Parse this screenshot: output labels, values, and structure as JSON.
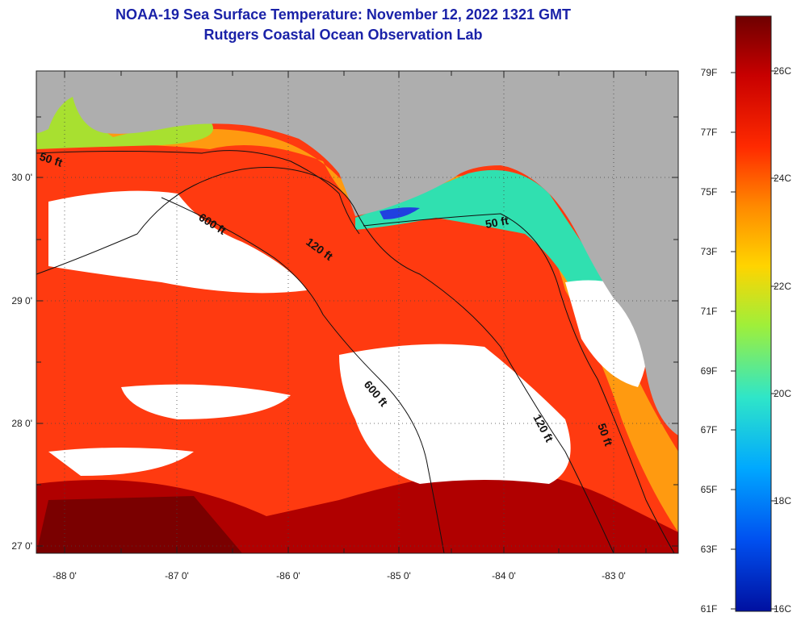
{
  "title": "NOAA-19 Sea Surface Temperature:  November 12, 2022 1321 GMT",
  "subtitle": "Rutgers Coastal Ocean Observation Lab",
  "lat_ticks": [
    "30 0'",
    "29 0'",
    "28 0'",
    "27 0'"
  ],
  "lon_ticks": [
    "-88 0'",
    "-87 0'",
    "-86 0'",
    "-85 0'",
    "-84 0'",
    "-83 0'"
  ],
  "contour_labels": [
    "50 ft",
    "600 ft",
    "120 ft",
    "50 ft",
    "600 ft",
    "120 ft",
    "50 ft"
  ],
  "colorbar": {
    "fahrenheit": [
      "79F",
      "77F",
      "75F",
      "73F",
      "71F",
      "69F",
      "67F",
      "65F",
      "63F",
      "61F"
    ],
    "celsius": [
      "26C",
      "24C",
      "22C",
      "20C",
      "18C",
      "16C"
    ],
    "colors": [
      "#6e0000",
      "#c80000",
      "#ff2a00",
      "#ff8a00",
      "#ffd400",
      "#9fef3a",
      "#2fe6c8",
      "#00a8ff",
      "#0050f0",
      "#0010a0"
    ]
  },
  "colors": {
    "land": "#aeaeae",
    "cloud": "#ffffff",
    "title": "#1a22a8"
  }
}
